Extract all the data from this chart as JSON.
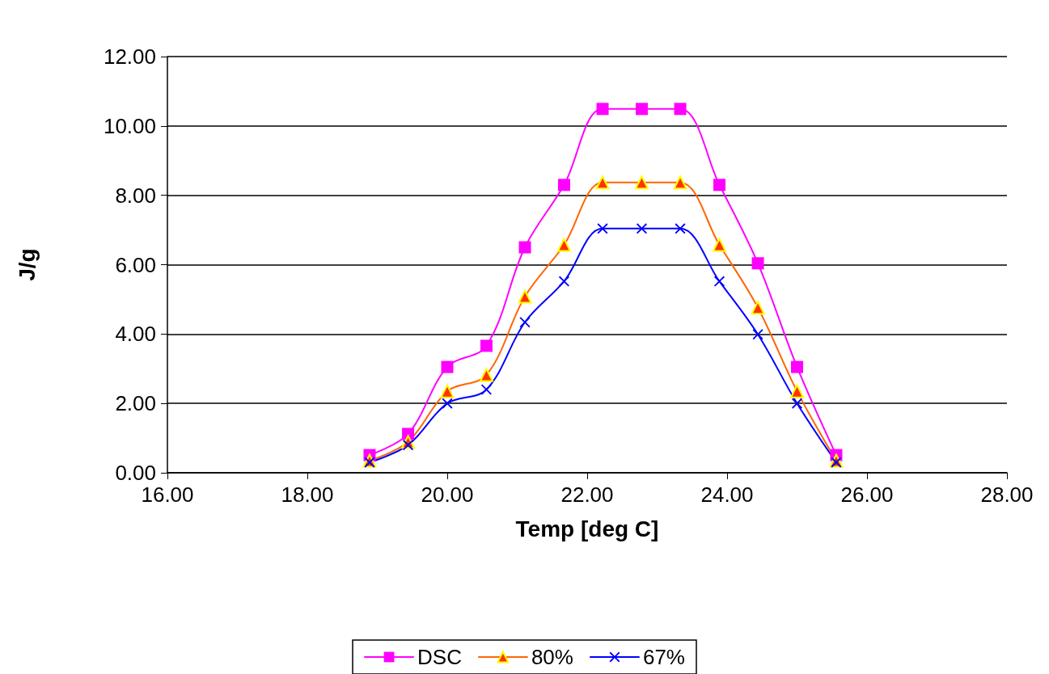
{
  "chart_data": {
    "type": "line",
    "xlabel": "Temp [deg C]",
    "ylabel": "J/g",
    "x": [
      18.89,
      19.44,
      20.0,
      20.56,
      21.11,
      21.67,
      22.22,
      22.78,
      23.33,
      23.89,
      24.44,
      25.0,
      25.56
    ],
    "series": [
      {
        "name": "DSC",
        "color": "#ff00ff",
        "marker": "square",
        "values": [
          0.51,
          1.12,
          3.05,
          3.66,
          6.5,
          8.3,
          10.49,
          10.49,
          10.49,
          8.3,
          6.04,
          3.05,
          0.51
        ]
      },
      {
        "name": "80%",
        "color": "#ff6600",
        "marker": "triangle",
        "values": [
          0.35,
          0.89,
          2.35,
          2.82,
          5.08,
          6.57,
          8.37,
          8.37,
          8.37,
          6.57,
          4.76,
          2.35,
          0.35
        ]
      },
      {
        "name": "67%",
        "color": "#0000ff",
        "marker": "cross",
        "values": [
          0.3,
          0.8,
          2.0,
          2.4,
          4.34,
          5.52,
          7.04,
          7.04,
          7.04,
          5.52,
          3.99,
          2.0,
          0.3
        ]
      }
    ],
    "xlim": [
      16,
      28
    ],
    "xticks": [
      {
        "value": 16,
        "label": "16.00"
      },
      {
        "value": 18,
        "label": "18.00"
      },
      {
        "value": 20,
        "label": "20.00"
      },
      {
        "value": 22,
        "label": "22.00"
      },
      {
        "value": 24,
        "label": "24.00"
      },
      {
        "value": 26,
        "label": "26.00"
      },
      {
        "value": 28,
        "label": "28.00"
      }
    ],
    "ylim": [
      0,
      12
    ],
    "yticks": [
      {
        "value": 0,
        "label": "0.00"
      },
      {
        "value": 2,
        "label": "2.00"
      },
      {
        "value": 4,
        "label": "4.00"
      },
      {
        "value": 6,
        "label": "6.00"
      },
      {
        "value": 8,
        "label": "8.00"
      },
      {
        "value": 10,
        "label": "10.00"
      },
      {
        "value": 12,
        "label": "12.00"
      }
    ],
    "grid": "y",
    "legend": "bottom",
    "line_style": "solid"
  }
}
